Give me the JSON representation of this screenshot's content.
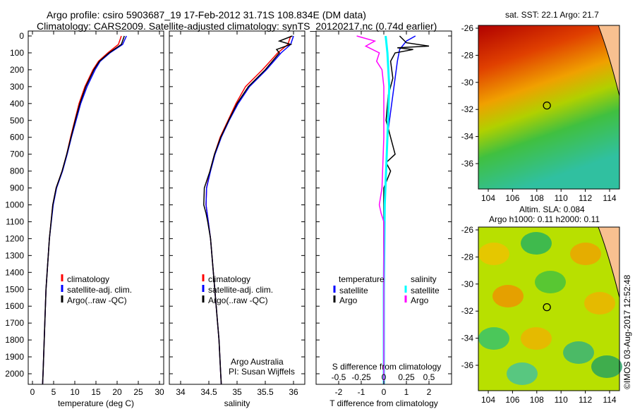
{
  "title_line1": "Argo profile: csiro 5903687_19 17-Feb-2012 31.71S 108.834E (DM data)",
  "title_line2": "Climatology: CARS2009. Satellite-adjusted climatology: synTS_20120217.nc (0.74d earlier)",
  "credit": "Argo Australia",
  "pi": "PI: Susan Wijffels",
  "stamp": "©IMOS 03-Aug-2017 12:52:48",
  "colors": {
    "clim": "#ff0000",
    "sat": "#0000ff",
    "argo": "#000000",
    "s_sat": "#00ffff",
    "s_argo": "#ff00ff"
  },
  "chart_data": [
    {
      "type": "line",
      "xlabel": "temperature (deg C)",
      "xlim": [
        -1,
        31
      ],
      "ylim": [
        2060,
        0
      ],
      "xticks": [
        0,
        5,
        10,
        15,
        20,
        25,
        30
      ],
      "yticks": [
        0,
        100,
        200,
        300,
        400,
        500,
        600,
        700,
        800,
        900,
        1000,
        1100,
        1200,
        1300,
        1400,
        1500,
        1600,
        1700,
        1800,
        1900,
        2000
      ],
      "legend": [
        "climatology",
        "satellite-adj. clim.",
        "Argo(..raw -QC)"
      ],
      "series": [
        {
          "name": "climatology",
          "depth": [
            0,
            50,
            100,
            150,
            200,
            300,
            400,
            500,
            600,
            700,
            800,
            900,
            1000,
            1200,
            1500,
            2000,
            2060
          ],
          "values": [
            21,
            20.3,
            17.8,
            15.6,
            14.3,
            12.4,
            11,
            10,
            9,
            8.1,
            7,
            5.6,
            4.8,
            4,
            3.2,
            2.5,
            2.4
          ]
        },
        {
          "name": "satellite-adj. clim.",
          "depth": [
            0,
            50,
            100,
            150,
            200,
            300,
            400,
            500,
            600,
            700,
            800,
            900,
            1000,
            1200,
            1500,
            2000,
            2060
          ],
          "values": [
            22.2,
            21.3,
            18.3,
            16,
            14.8,
            12.9,
            11.4,
            10.3,
            9.2,
            8.2,
            7.1,
            5.7,
            4.9,
            4,
            3.2,
            2.5,
            2.4
          ]
        },
        {
          "name": "Argo(..raw -QC)",
          "depth": [
            0,
            50,
            100,
            150,
            200,
            300,
            400,
            500,
            600,
            700,
            800,
            900,
            1000,
            1200,
            1500,
            2000,
            2060
          ],
          "values": [
            21.7,
            21,
            18.1,
            15.8,
            14.5,
            12.6,
            11.2,
            10.1,
            9.1,
            8.1,
            7,
            5.6,
            4.8,
            4,
            3.2,
            2.5,
            2.4
          ]
        }
      ]
    },
    {
      "type": "line",
      "xlabel": "salinity",
      "xlim": [
        33.8,
        36.2
      ],
      "ylim": [
        2060,
        0
      ],
      "xticks": [
        34,
        34.5,
        35,
        35.5,
        36
      ],
      "legend": [
        "climatology",
        "satellite-adj. clim.",
        "Argo(..raw -QC)"
      ],
      "series": [
        {
          "name": "climatology",
          "depth": [
            0,
            50,
            100,
            200,
            300,
            400,
            500,
            600,
            700,
            800,
            900,
            1000,
            1100,
            1200,
            1400,
            1600,
            1800,
            2000,
            2060
          ],
          "values": [
            35.95,
            35.9,
            35.72,
            35.45,
            35.15,
            34.98,
            34.84,
            34.7,
            34.6,
            34.52,
            34.46,
            34.45,
            34.49,
            34.53,
            34.58,
            34.63,
            34.68,
            34.71,
            34.72
          ]
        },
        {
          "name": "satellite-adj. clim.",
          "depth": [
            0,
            50,
            100,
            200,
            300,
            400,
            500,
            600,
            700,
            800,
            900,
            1000,
            1100,
            1200,
            1400,
            1600,
            1800,
            2000,
            2060
          ],
          "values": [
            36,
            35.95,
            35.78,
            35.52,
            35.22,
            35.02,
            34.86,
            34.72,
            34.61,
            34.53,
            34.46,
            34.45,
            34.49,
            34.53,
            34.58,
            34.63,
            34.68,
            34.71,
            34.72
          ]
        },
        {
          "name": "Argo(..raw -QC)",
          "depth": [
            0,
            30,
            50,
            80,
            100,
            200,
            300,
            400,
            500,
            600,
            700,
            800,
            900,
            1000,
            1050,
            1100,
            1200,
            1400,
            1600,
            1800,
            2000,
            2060
          ],
          "values": [
            35.98,
            35.75,
            35.95,
            35.7,
            35.75,
            35.5,
            35.2,
            35,
            34.85,
            34.71,
            34.6,
            34.52,
            34.42,
            34.41,
            34.45,
            34.48,
            34.53,
            34.58,
            34.63,
            34.68,
            34.71,
            34.72
          ]
        }
      ]
    },
    {
      "type": "line",
      "xlabel": "T difference from climatology",
      "xlabel2": "S difference from climatology",
      "xlim": [
        -3,
        3
      ],
      "xticks": [
        -2,
        -1,
        0,
        1,
        2
      ],
      "xticks2": [
        -0.5,
        -0.25,
        0,
        0.25,
        0.5
      ],
      "ylim": [
        2060,
        0
      ],
      "legend_titles": [
        "temperature",
        "salinity"
      ],
      "legend": [
        "satellite",
        "Argo",
        "satellite",
        "Argo"
      ],
      "series": [
        {
          "name": "T satellite",
          "depth": [
            0,
            30,
            80,
            150,
            250,
            350,
            450,
            600,
            800,
            1000,
            1200,
            1500,
            2060
          ],
          "values": [
            1.4,
            1,
            0.7,
            0.6,
            0.5,
            0.4,
            0.3,
            0.15,
            0.1,
            0.05,
            0,
            0,
            0
          ]
        },
        {
          "name": "T Argo",
          "depth": [
            0,
            40,
            60,
            70,
            80,
            100,
            150,
            250,
            350,
            500,
            600,
            700,
            750,
            800,
            900,
            1000,
            1200,
            1500,
            2060
          ],
          "values": [
            0.7,
            1,
            2,
            0.6,
            1.3,
            0.5,
            0.3,
            0.4,
            0.2,
            0.1,
            0.3,
            0.5,
            0.1,
            0.3,
            0,
            0,
            0,
            0,
            0
          ]
        },
        {
          "name": "S satellite",
          "depth": [
            0,
            100,
            300,
            600,
            1000,
            1500,
            2060
          ],
          "values": [
            0.02,
            0.04,
            0.06,
            0.04,
            0.01,
            0,
            0
          ]
        },
        {
          "name": "S Argo",
          "depth": [
            0,
            30,
            60,
            100,
            150,
            200,
            300,
            600,
            900,
            1000,
            1050,
            1100,
            1300,
            1600,
            2060
          ],
          "values": [
            -0.3,
            -0.1,
            -0.2,
            -0.05,
            -0.08,
            -0.02,
            0,
            0,
            -0.02,
            -0.05,
            -0.03,
            0,
            0,
            0,
            0
          ]
        }
      ]
    }
  ],
  "map_sst": {
    "title": "sat. SST: 22.1  Argo: 21.7",
    "lon_ticks": [
      104,
      106,
      108,
      110,
      112,
      114
    ],
    "lat_ticks": [
      -26,
      -28,
      -30,
      -32,
      -34,
      -36
    ],
    "float_lon": 108.834,
    "float_lat": -31.71
  },
  "map_sla": {
    "title1": "Altim. SLA: 0.084",
    "title2": "Argo h1000: 0.11 h2000: 0.11",
    "lon_ticks": [
      104,
      106,
      108,
      110,
      112,
      114
    ],
    "lat_ticks": [
      -26,
      -28,
      -30,
      -32,
      -34,
      -36
    ],
    "float_lon": 108.834,
    "float_lat": -31.71
  }
}
